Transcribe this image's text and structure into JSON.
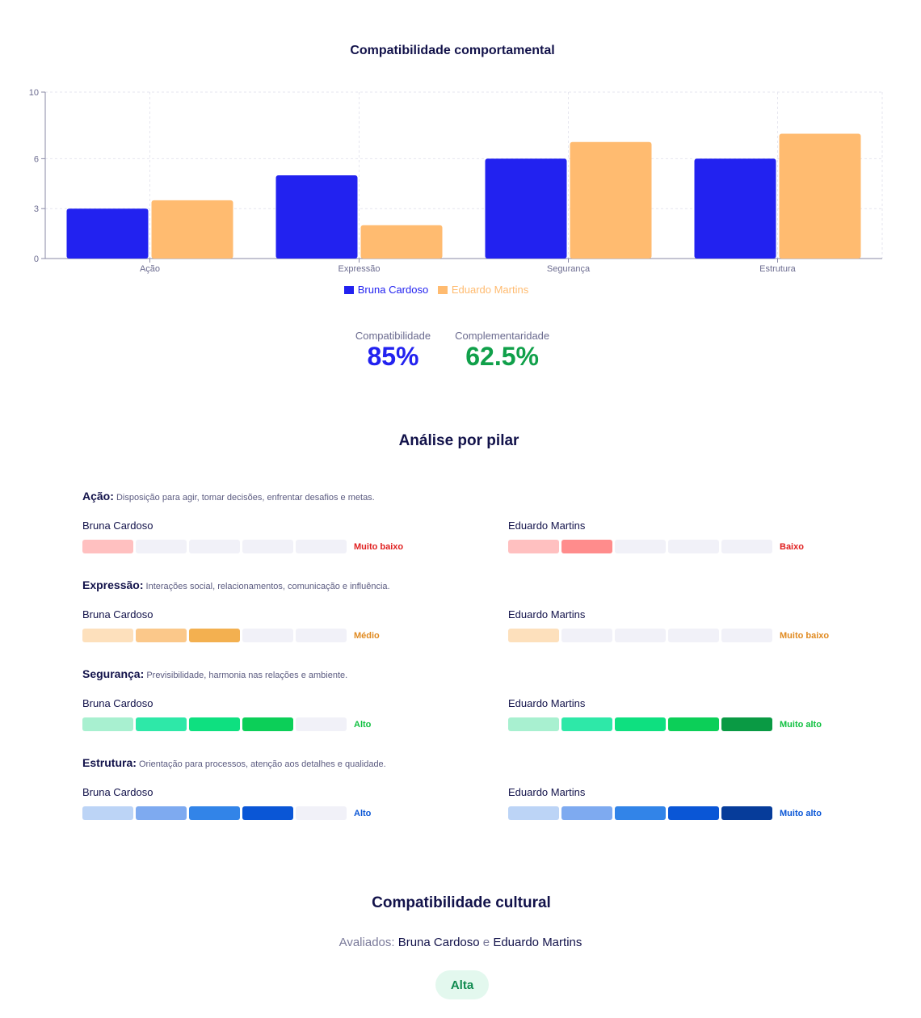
{
  "chart_data": {
    "type": "bar",
    "title": "Compatibilidade comportamental",
    "categories": [
      "Ação",
      "Expressão",
      "Segurança",
      "Estrutura"
    ],
    "series": [
      {
        "name": "Bruna Cardoso",
        "color": "#2222f0",
        "values": [
          3,
          5,
          6,
          6
        ]
      },
      {
        "name": "Eduardo Martins",
        "color": "#ffbb70",
        "values": [
          3.5,
          2,
          7,
          7.5
        ]
      }
    ],
    "yticks": [
      0,
      3,
      6,
      10
    ],
    "ylim": [
      0,
      10
    ],
    "grid": true,
    "legend": "bottom"
  },
  "metrics": [
    {
      "label": "Compatibilidade",
      "value": "85%",
      "color": "#2222f0"
    },
    {
      "label": "Complementaridade",
      "value": "62.5%",
      "color": "#10a04a"
    }
  ],
  "analysis": {
    "title": "Análise por pilar",
    "pillars": [
      {
        "name": "Ação:",
        "description": "Disposição para agir, tomar decisões, enfrentar desafios e metas.",
        "palette": [
          "#ffc0c0",
          "#ff8c8c",
          "#f05050",
          "#d02020",
          "#a01010"
        ],
        "level_color": "#e02020",
        "people": [
          {
            "name": "Bruna Cardoso",
            "score": 1,
            "level": "Muito baixo"
          },
          {
            "name": "Eduardo Martins",
            "score": 2,
            "level": "Baixo"
          }
        ]
      },
      {
        "name": "Expressão:",
        "description": "Interações social, relacionamentos, comunicação e influência.",
        "palette": [
          "#fde0bc",
          "#fbc88a",
          "#f3b050",
          "#e89a30",
          "#c97d10"
        ],
        "level_color": "#e08a20",
        "people": [
          {
            "name": "Bruna Cardoso",
            "score": 3,
            "level": "Médio"
          },
          {
            "name": "Eduardo Martins",
            "score": 1,
            "level": "Muito baixo"
          }
        ]
      },
      {
        "name": "Segurança:",
        "description": "Previsibilidade, harmonia nas relações e ambiente.",
        "palette": [
          "#a8f0d0",
          "#2ee8a8",
          "#0ee080",
          "#0ccf58",
          "#0a9a44"
        ],
        "level_color": "#10c040",
        "people": [
          {
            "name": "Bruna Cardoso",
            "score": 4,
            "level": "Alto"
          },
          {
            "name": "Eduardo Martins",
            "score": 5,
            "level": "Muito alto"
          }
        ]
      },
      {
        "name": "Estrutura:",
        "description": "Orientação para processos, atenção aos detalhes e qualidade.",
        "palette": [
          "#bcd4f6",
          "#7eaaf0",
          "#3284e8",
          "#0a56d6",
          "#063c9a"
        ],
        "level_color": "#0a56d6",
        "people": [
          {
            "name": "Bruna Cardoso",
            "score": 4,
            "level": "Alto"
          },
          {
            "name": "Eduardo Martins",
            "score": 5,
            "level": "Muito alto"
          }
        ]
      }
    ]
  },
  "cultural": {
    "title": "Compatibilidade cultural",
    "prefix": "Avaliados:",
    "person_a": "Bruna Cardoso",
    "connector": "e",
    "person_b": "Eduardo Martins",
    "badge": "Alta"
  }
}
